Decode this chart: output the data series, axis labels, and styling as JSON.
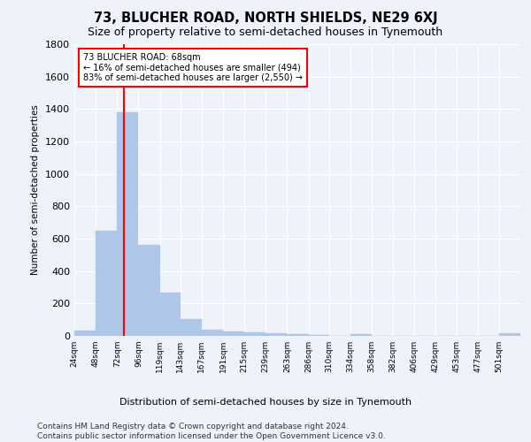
{
  "title": "73, BLUCHER ROAD, NORTH SHIELDS, NE29 6XJ",
  "subtitle": "Size of property relative to semi-detached houses in Tynemouth",
  "xlabel": "Distribution of semi-detached houses by size in Tynemouth",
  "ylabel": "Number of semi-detached properties",
  "bar_color": "#aec6e8",
  "bar_edge_color": "#aec6e8",
  "background_color": "#eef2fb",
  "grid_color": "#ffffff",
  "annotation_text": "73 BLUCHER ROAD: 68sqm\n← 16% of semi-detached houses are smaller (494)\n83% of semi-detached houses are larger (2,550) →",
  "vline_x": 68,
  "vline_color": "red",
  "categories": [
    "24sqm",
    "48sqm",
    "72sqm",
    "96sqm",
    "119sqm",
    "143sqm",
    "167sqm",
    "191sqm",
    "215sqm",
    "239sqm",
    "263sqm",
    "286sqm",
    "310sqm",
    "334sqm",
    "358sqm",
    "382sqm",
    "406sqm",
    "429sqm",
    "453sqm",
    "477sqm",
    "501sqm"
  ],
  "values": [
    35,
    650,
    1380,
    560,
    270,
    105,
    38,
    25,
    20,
    18,
    10,
    5,
    0,
    12,
    0,
    0,
    0,
    0,
    0,
    0,
    18
  ],
  "bin_edges": [
    12,
    36,
    60,
    84,
    108,
    131,
    155,
    179,
    203,
    227,
    251,
    275,
    298,
    322,
    346,
    370,
    394,
    418,
    441,
    465,
    489,
    513
  ],
  "ylim": [
    0,
    1800
  ],
  "yticks": [
    0,
    200,
    400,
    600,
    800,
    1000,
    1200,
    1400,
    1600,
    1800
  ],
  "footer": "Contains HM Land Registry data © Crown copyright and database right 2024.\nContains public sector information licensed under the Open Government Licence v3.0.",
  "footer_fontsize": 6.5,
  "title_fontsize": 10.5,
  "subtitle_fontsize": 9
}
